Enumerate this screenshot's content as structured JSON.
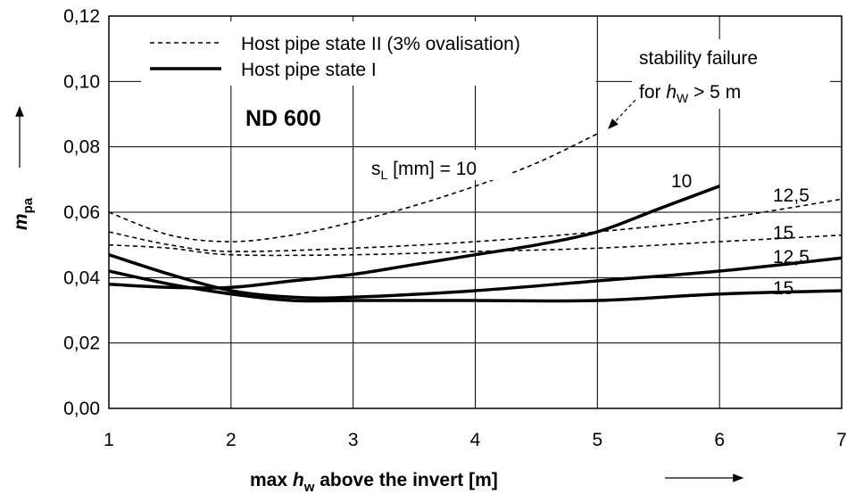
{
  "chart_data": {
    "type": "line",
    "title": "ND 600",
    "xlabel": {
      "prefix": "max ",
      "var": "h",
      "sub": "w",
      "suffix": " above the invert [m]"
    },
    "ylabel": {
      "var": "m",
      "sub": "pa"
    },
    "xlim": [
      1,
      7
    ],
    "ylim": [
      0.0,
      0.12
    ],
    "xticks": [
      1,
      2,
      3,
      4,
      5,
      6,
      7
    ],
    "xtick_labels": [
      "1",
      "2",
      "3",
      "4",
      "5",
      "6",
      "7"
    ],
    "yticks": [
      0.0,
      0.02,
      0.04,
      0.06,
      0.08,
      0.1,
      0.12
    ],
    "ytick_labels": [
      "0,00",
      "0,02",
      "0,04",
      "0,06",
      "0,08",
      "0,10",
      "0,12"
    ],
    "grid": true,
    "legend": {
      "placement": "top-left",
      "entries": [
        {
          "label": "Host pipe state II (3% ovalisation)",
          "style": "dashed"
        },
        {
          "label": "Host pipe state I",
          "style": "solid"
        }
      ]
    },
    "series": [
      {
        "style": "dashed",
        "label": "10",
        "x": [
          1,
          1.5,
          2,
          2.5,
          3,
          3.5,
          4,
          4.5,
          5
        ],
        "y": [
          0.06,
          0.053,
          0.051,
          0.053,
          0.057,
          0.062,
          0.068,
          0.075,
          0.084
        ]
      },
      {
        "style": "dashed",
        "label": "12,5",
        "x": [
          1,
          1.5,
          2,
          3,
          4,
          5,
          6,
          7
        ],
        "y": [
          0.054,
          0.05,
          0.048,
          0.049,
          0.051,
          0.054,
          0.058,
          0.064
        ]
      },
      {
        "style": "dashed",
        "label": "15",
        "x": [
          1,
          1.5,
          2,
          3,
          4,
          5,
          6,
          7
        ],
        "y": [
          0.05,
          0.049,
          0.047,
          0.047,
          0.048,
          0.049,
          0.051,
          0.053
        ]
      },
      {
        "style": "solid",
        "label": "10",
        "x": [
          1,
          1.5,
          2,
          2.5,
          3,
          3.5,
          4,
          4.5,
          5,
          5.5,
          6
        ],
        "y": [
          0.038,
          0.037,
          0.037,
          0.039,
          0.041,
          0.044,
          0.047,
          0.05,
          0.054,
          0.061,
          0.068
        ]
      },
      {
        "style": "solid",
        "label": "12,5",
        "x": [
          1,
          1.5,
          2,
          2.5,
          3,
          4,
          5,
          6,
          7
        ],
        "y": [
          0.047,
          0.041,
          0.036,
          0.034,
          0.034,
          0.036,
          0.039,
          0.042,
          0.046
        ]
      },
      {
        "style": "solid",
        "label": "15",
        "x": [
          1,
          1.5,
          2,
          2.5,
          3,
          4,
          5,
          6,
          7
        ],
        "y": [
          0.042,
          0.038,
          0.035,
          0.033,
          0.033,
          0.033,
          0.033,
          0.035,
          0.036
        ]
      }
    ],
    "annotations": {
      "sl_label": {
        "var": "s",
        "sub": "L",
        "suffix": " [mm] = 10"
      },
      "stability_line1": "stability failure",
      "stability_line2": {
        "prefix": "for ",
        "var": "h",
        "sub": "W",
        "suffix": " > 5 m"
      },
      "curve_labels": [
        "10",
        "12,5",
        "15",
        "12,5",
        "15"
      ]
    }
  }
}
